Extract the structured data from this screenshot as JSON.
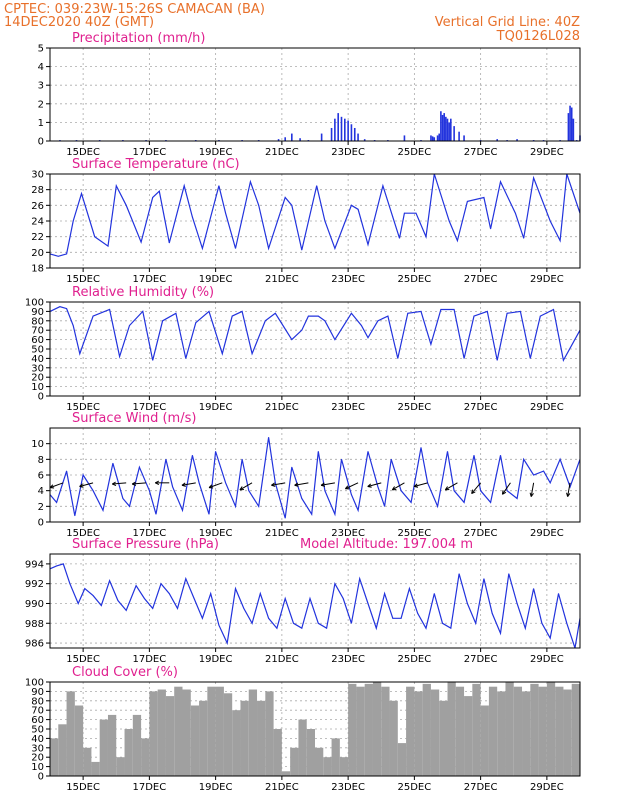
{
  "header": {
    "line1": "CPTEC:  039:23W-15:26S  CAMACAN (BA)",
    "line2": "14DEC2020 40Z (GMT)",
    "right1": "Vertical Grid Line: 40Z",
    "right2": "TQ0126L028"
  },
  "colors": {
    "header": "#e8702a",
    "title": "#e0208f",
    "line": "#2233dd",
    "bar": "#2233dd",
    "cloud": "#a0a0a0",
    "grid": "#aaaaaa"
  },
  "chart_data": [
    {
      "type": "bar",
      "title": "Precipitation (mm/h)",
      "xticks": [
        "15DEC",
        "17DEC",
        "19DEC",
        "21DEC",
        "23DEC",
        "25DEC",
        "27DEC",
        "29DEC"
      ],
      "ylim": [
        0,
        5
      ],
      "yticks": [
        0,
        1,
        2,
        3,
        4,
        5
      ],
      "x": [
        0.3,
        0.8,
        1.5,
        2.2,
        2.9,
        3.5,
        4.4,
        5.1,
        5.8,
        6.3,
        6.9,
        7.1,
        7.3,
        7.55,
        7.8,
        8.2,
        8.5,
        8.6,
        8.7,
        8.8,
        8.9,
        9.0,
        9.1,
        9.2,
        9.3,
        9.5,
        9.8,
        10.2,
        10.7,
        11.2,
        11.5,
        11.55,
        11.6,
        11.7,
        11.75,
        11.8,
        11.85,
        11.9,
        11.95,
        12.0,
        12.05,
        12.1,
        12.2,
        12.35,
        12.5,
        13.0,
        13.5,
        13.8,
        14.1,
        14.6,
        14.9,
        15.4,
        15.65,
        15.7,
        15.75,
        15.8,
        15.9,
        16.0
      ],
      "values": [
        0.05,
        0.05,
        0.05,
        0.05,
        0.05,
        0.05,
        0.05,
        0.05,
        0.05,
        0.05,
        0.1,
        0.2,
        0.4,
        0.15,
        0.05,
        0.4,
        0.7,
        1.2,
        1.5,
        1.3,
        1.2,
        1.1,
        0.9,
        0.7,
        0.4,
        0.1,
        0.05,
        0.05,
        0.3,
        0.05,
        0.3,
        0.25,
        0.2,
        0.3,
        0.4,
        1.6,
        1.4,
        1.5,
        1.3,
        1.2,
        1.0,
        1.2,
        0.8,
        0.5,
        0.3,
        0.05,
        0.1,
        0.05,
        0.1,
        0.05,
        0.05,
        0.05,
        1.5,
        1.9,
        1.8,
        1.2,
        0.05,
        0.3
      ],
      "ylabel": ""
    },
    {
      "type": "line",
      "title": "Surface Temperature (nC)",
      "xticks": [
        "15DEC",
        "17DEC",
        "19DEC",
        "21DEC",
        "23DEC",
        "25DEC",
        "27DEC",
        "29DEC"
      ],
      "ylim": [
        18,
        30
      ],
      "yticks": [
        18,
        20,
        22,
        24,
        26,
        28,
        30
      ],
      "x": [
        0,
        0.25,
        0.5,
        0.7,
        0.95,
        1.35,
        1.75,
        2.0,
        2.3,
        2.75,
        3.1,
        3.3,
        3.6,
        4.05,
        4.3,
        4.6,
        5.1,
        5.3,
        5.6,
        6.05,
        6.3,
        6.6,
        7.1,
        7.3,
        7.6,
        8.05,
        8.3,
        8.6,
        9.1,
        9.3,
        9.6,
        10.05,
        10.35,
        10.55,
        10.7,
        11.05,
        11.35,
        11.6,
        12.05,
        12.3,
        12.6,
        13.1,
        13.3,
        13.6,
        14.05,
        14.3,
        14.6,
        15.1,
        15.4,
        15.6,
        16.0
      ],
      "values": [
        19.8,
        19.5,
        19.8,
        24,
        27.5,
        22,
        20.8,
        28.5,
        26,
        21.3,
        27,
        27.8,
        21.2,
        28.5,
        24.5,
        20.5,
        28.5,
        25,
        20.5,
        29,
        26,
        20.5,
        27,
        26,
        20.3,
        28.5,
        24,
        20.5,
        26,
        25.5,
        21,
        28.5,
        24.5,
        21.8,
        25,
        25,
        22,
        30,
        24,
        21.5,
        26.5,
        27,
        23,
        29,
        25,
        21.8,
        29.5,
        24,
        21.5,
        30,
        25
      ],
      "ylabel": ""
    },
    {
      "type": "line",
      "title": "Relative Humidity (%)",
      "xticks": [
        "15DEC",
        "17DEC",
        "19DEC",
        "21DEC",
        "23DEC",
        "25DEC",
        "27DEC",
        "29DEC"
      ],
      "ylim": [
        0,
        100
      ],
      "yticks": [
        0,
        10,
        20,
        30,
        40,
        50,
        60,
        70,
        80,
        90,
        100
      ],
      "x": [
        0,
        0.3,
        0.5,
        0.7,
        0.9,
        1.3,
        1.8,
        2.1,
        2.4,
        2.8,
        3.1,
        3.4,
        3.8,
        4.1,
        4.4,
        4.8,
        5.2,
        5.5,
        5.8,
        6.1,
        6.5,
        6.8,
        7.3,
        7.6,
        7.8,
        8.1,
        8.3,
        8.6,
        9.1,
        9.4,
        9.6,
        9.9,
        10.2,
        10.5,
        10.8,
        11.2,
        11.5,
        11.8,
        12.2,
        12.5,
        12.8,
        13.2,
        13.5,
        13.8,
        14.2,
        14.5,
        14.8,
        15.2,
        15.5,
        16.0
      ],
      "values": [
        90,
        95,
        93,
        75,
        45,
        85,
        92,
        42,
        75,
        90,
        38,
        80,
        88,
        40,
        78,
        90,
        45,
        85,
        90,
        45,
        80,
        88,
        60,
        70,
        85,
        85,
        80,
        60,
        88,
        75,
        62,
        80,
        85,
        40,
        88,
        90,
        55,
        92,
        92,
        40,
        85,
        90,
        38,
        88,
        90,
        40,
        85,
        92,
        38,
        70
      ],
      "ylabel": ""
    },
    {
      "type": "line",
      "title": "Surface Wind (m/s)",
      "xticks": [
        "15DEC",
        "17DEC",
        "19DEC",
        "21DEC",
        "23DEC",
        "25DEC",
        "27DEC",
        "29DEC"
      ],
      "ylim": [
        0,
        12
      ],
      "yticks": [
        0,
        2,
        4,
        6,
        8,
        10
      ],
      "x": [
        0,
        0.2,
        0.5,
        0.75,
        1.0,
        1.3,
        1.6,
        1.9,
        2.2,
        2.4,
        2.7,
        3.0,
        3.2,
        3.5,
        3.7,
        4.0,
        4.3,
        4.5,
        4.8,
        5.0,
        5.3,
        5.6,
        5.8,
        6.0,
        6.3,
        6.6,
        6.8,
        7.1,
        7.3,
        7.6,
        7.9,
        8.1,
        8.3,
        8.6,
        8.8,
        9.1,
        9.3,
        9.6,
        9.9,
        10.1,
        10.3,
        10.6,
        10.9,
        11.2,
        11.4,
        11.7,
        12.0,
        12.2,
        12.5,
        12.8,
        13.0,
        13.3,
        13.6,
        13.8,
        14.1,
        14.3,
        14.6,
        14.9,
        15.1,
        15.4,
        15.7,
        16.0
      ],
      "values": [
        3.5,
        2.5,
        6.5,
        0.8,
        6.0,
        4.0,
        1.5,
        7.5,
        3.0,
        2.0,
        7.0,
        4.0,
        1.0,
        8.0,
        4.5,
        1.5,
        8.5,
        5.0,
        1.0,
        9.0,
        5.0,
        2.0,
        8.0,
        4.0,
        2.0,
        10.8,
        5.0,
        0.5,
        7.0,
        3.0,
        1.0,
        9.0,
        4.0,
        1.0,
        8.0,
        3.5,
        1.5,
        9.0,
        4.5,
        2.0,
        8.0,
        4.0,
        2.5,
        9.5,
        5.0,
        2.0,
        9.0,
        4.0,
        2.5,
        8.5,
        4.0,
        2.5,
        8.5,
        4.0,
        3.0,
        8.0,
        6.0,
        6.5,
        5.0,
        8.0,
        4.5,
        8.0
      ],
      "arrows": [
        {
          "x": 0.4,
          "dir": 70
        },
        {
          "x": 1.3,
          "dir": 75
        },
        {
          "x": 2.3,
          "dir": 85
        },
        {
          "x": 2.9,
          "dir": 85
        },
        {
          "x": 3.6,
          "dir": 90
        },
        {
          "x": 4.4,
          "dir": 80
        },
        {
          "x": 5.2,
          "dir": 70
        },
        {
          "x": 6.1,
          "dir": 60
        },
        {
          "x": 7.1,
          "dir": 80
        },
        {
          "x": 7.8,
          "dir": 80
        },
        {
          "x": 8.6,
          "dir": 80
        },
        {
          "x": 9.3,
          "dir": 65
        },
        {
          "x": 10.0,
          "dir": 75
        },
        {
          "x": 10.7,
          "dir": 60
        },
        {
          "x": 11.4,
          "dir": 75
        },
        {
          "x": 12.3,
          "dir": 60
        },
        {
          "x": 13.0,
          "dir": 40
        },
        {
          "x": 13.9,
          "dir": 35
        },
        {
          "x": 14.6,
          "dir": 10
        },
        {
          "x": 15.7,
          "dir": 10
        }
      ],
      "ylabel": ""
    },
    {
      "type": "line",
      "title": "Surface Pressure (hPa)",
      "annotation": "Model Altitude: 197.004 m",
      "xticks": [
        "15DEC",
        "17DEC",
        "19DEC",
        "21DEC",
        "23DEC",
        "25DEC",
        "27DEC",
        "29DEC"
      ],
      "ylim": [
        985.5,
        995
      ],
      "yticks": [
        986,
        988,
        990,
        992,
        994
      ],
      "x": [
        0,
        0.2,
        0.4,
        0.6,
        0.85,
        1.05,
        1.3,
        1.55,
        1.8,
        2.05,
        2.3,
        2.6,
        2.85,
        3.1,
        3.35,
        3.6,
        3.85,
        4.1,
        4.35,
        4.6,
        4.85,
        5.1,
        5.35,
        5.6,
        5.85,
        6.1,
        6.35,
        6.6,
        6.85,
        7.1,
        7.35,
        7.6,
        7.85,
        8.1,
        8.35,
        8.6,
        8.85,
        9.1,
        9.35,
        9.6,
        9.85,
        10.1,
        10.35,
        10.6,
        10.85,
        11.1,
        11.35,
        11.6,
        11.85,
        12.1,
        12.35,
        12.6,
        12.85,
        13.1,
        13.35,
        13.6,
        13.85,
        14.1,
        14.35,
        14.6,
        14.85,
        15.1,
        15.35,
        15.6,
        15.85,
        16.0
      ],
      "values": [
        993.5,
        993.8,
        994.0,
        992.0,
        990.0,
        991.5,
        990.8,
        989.8,
        992.3,
        990.3,
        989.3,
        991.8,
        990.5,
        989.5,
        992.0,
        991.0,
        989.5,
        992.5,
        990.5,
        988.5,
        991.0,
        987.8,
        986.0,
        991.5,
        989.5,
        988.0,
        991.0,
        988.5,
        987.5,
        990.5,
        988.0,
        987.5,
        990.5,
        988.0,
        987.5,
        992.0,
        990.5,
        988.0,
        992.5,
        990.0,
        987.5,
        991.0,
        988.5,
        988.5,
        991.5,
        989.0,
        987.5,
        991.0,
        988.0,
        987.5,
        993.0,
        990.0,
        988.0,
        992.5,
        989.0,
        987.0,
        993.0,
        990.0,
        987.5,
        991.5,
        988.0,
        986.5,
        991.0,
        988.0,
        985.5,
        988.5
      ],
      "ylabel": ""
    },
    {
      "type": "bar",
      "title": "Cloud Cover (%)",
      "xticks": [
        "15DEC",
        "17DEC",
        "19DEC",
        "21DEC",
        "23DEC",
        "25DEC",
        "27DEC",
        "29DEC"
      ],
      "ylim": [
        0,
        100
      ],
      "yticks": [
        0,
        10,
        20,
        30,
        40,
        50,
        60,
        70,
        80,
        90,
        100
      ],
      "x": [
        0,
        0.25,
        0.5,
        0.75,
        1.0,
        1.25,
        1.5,
        1.75,
        2.0,
        2.25,
        2.5,
        2.75,
        3.0,
        3.25,
        3.5,
        3.75,
        4.0,
        4.25,
        4.5,
        4.75,
        5.0,
        5.25,
        5.5,
        5.75,
        6.0,
        6.25,
        6.5,
        6.75,
        7.0,
        7.25,
        7.5,
        7.75,
        8.0,
        8.25,
        8.5,
        8.75,
        9.0,
        9.25,
        9.5,
        9.75,
        10.0,
        10.25,
        10.5,
        10.75,
        11.0,
        11.25,
        11.5,
        11.75,
        12.0,
        12.25,
        12.5,
        12.75,
        13.0,
        13.25,
        13.5,
        13.75,
        14.0,
        14.25,
        14.5,
        14.75,
        15.0,
        15.25,
        15.5,
        15.75
      ],
      "values": [
        40,
        55,
        90,
        75,
        30,
        15,
        60,
        65,
        20,
        50,
        65,
        40,
        90,
        92,
        85,
        95,
        92,
        75,
        80,
        95,
        95,
        88,
        70,
        80,
        92,
        80,
        90,
        50,
        5,
        30,
        60,
        50,
        30,
        20,
        40,
        20,
        98,
        95,
        98,
        100,
        95,
        80,
        35,
        95,
        90,
        98,
        92,
        80,
        100,
        95,
        85,
        98,
        75,
        95,
        90,
        100,
        95,
        90,
        98,
        95,
        100,
        95,
        92,
        98
      ],
      "ylabel": ""
    }
  ]
}
